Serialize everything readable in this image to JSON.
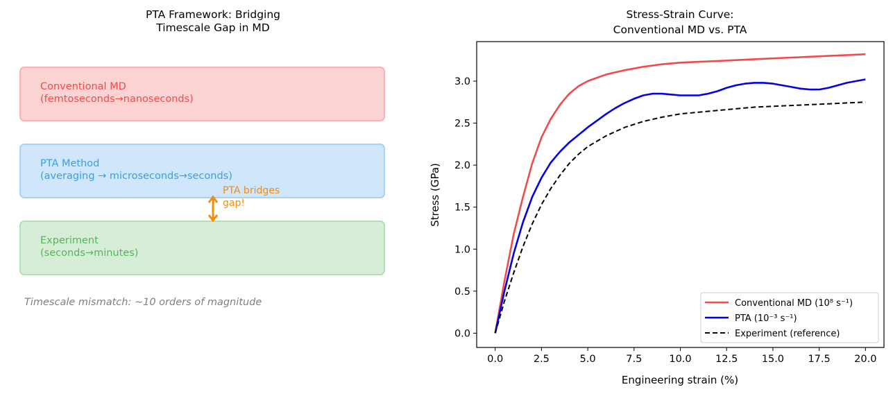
{
  "left": {
    "title": "PTA Framework: Bridging\nTimescale Gap in MD",
    "boxes": [
      {
        "line1": "Conventional MD",
        "line2": "(femtoseconds→nanoseconds)"
      },
      {
        "line1": "PTA Method",
        "line2": "(averaging → microseconds→seconds)"
      },
      {
        "line1": "Experiment",
        "line2": "(seconds→minutes)"
      }
    ],
    "bridge_label": "PTA bridges\ngap!",
    "note": "Timescale mismatch: ~10 orders of magnitude",
    "colors": {
      "red": "#ef4d4d",
      "blue": "#399fe7",
      "green": "#55b45a",
      "orange": "#f28d0a"
    }
  },
  "chart_data": {
    "type": "line",
    "title": "Stress-Strain Curve:\nConventional MD vs. PTA",
    "xlabel": "Engineering strain (%)",
    "ylabel": "Stress (GPa)",
    "xlim": [
      -1.0,
      21.0
    ],
    "ylim": [
      -0.17,
      3.47
    ],
    "xticks": [
      0.0,
      2.5,
      5.0,
      7.5,
      10.0,
      12.5,
      15.0,
      17.5,
      20.0
    ],
    "xtick_labels": [
      "0.0",
      "2.5",
      "5.0",
      "7.5",
      "10.0",
      "12.5",
      "15.0",
      "17.5",
      "20.0"
    ],
    "yticks": [
      0.0,
      0.5,
      1.0,
      1.5,
      2.0,
      2.5,
      3.0
    ],
    "ytick_labels": [
      "0.0",
      "0.5",
      "1.0",
      "1.5",
      "2.0",
      "2.5",
      "3.0"
    ],
    "legend_position": "lower-right",
    "series": [
      {
        "name": "Conventional MD (10⁸ s⁻¹)",
        "color": "#f24a4a",
        "dash": "solid",
        "x": [
          0,
          0.5,
          1,
          1.5,
          2,
          2.5,
          3,
          3.5,
          4,
          4.5,
          5,
          6,
          7,
          8,
          9,
          10,
          11,
          12,
          13,
          14,
          15,
          16,
          17,
          18,
          19,
          20
        ],
        "y": [
          0,
          0.62,
          1.18,
          1.62,
          2.02,
          2.33,
          2.55,
          2.72,
          2.85,
          2.94,
          3.0,
          3.08,
          3.13,
          3.17,
          3.2,
          3.22,
          3.23,
          3.24,
          3.25,
          3.26,
          3.27,
          3.28,
          3.29,
          3.3,
          3.31,
          3.32
        ]
      },
      {
        "name": "PTA (10⁻³ s⁻¹)",
        "color": "#0000ee",
        "dash": "solid",
        "x": [
          0,
          0.5,
          1,
          1.5,
          2,
          2.5,
          3,
          3.5,
          4,
          4.5,
          5,
          5.5,
          6,
          6.5,
          7,
          7.5,
          8,
          8.5,
          9,
          9.5,
          10,
          10.5,
          11,
          11.5,
          12,
          12.5,
          13,
          13.5,
          14,
          14.5,
          15,
          15.5,
          16,
          16.5,
          17,
          17.5,
          18,
          18.5,
          19,
          19.5,
          20
        ],
        "y": [
          0,
          0.5,
          0.95,
          1.32,
          1.62,
          1.85,
          2.03,
          2.16,
          2.27,
          2.36,
          2.45,
          2.53,
          2.61,
          2.68,
          2.74,
          2.79,
          2.83,
          2.85,
          2.85,
          2.84,
          2.83,
          2.83,
          2.83,
          2.85,
          2.88,
          2.92,
          2.95,
          2.97,
          2.98,
          2.98,
          2.97,
          2.95,
          2.93,
          2.91,
          2.9,
          2.9,
          2.92,
          2.95,
          2.98,
          3.0,
          3.02
        ]
      },
      {
        "name": "Experiment (reference)",
        "color": "#000000",
        "dash": "dashed",
        "x": [
          0,
          0.5,
          1,
          1.5,
          2,
          2.5,
          3,
          3.5,
          4,
          4.5,
          5,
          6,
          7,
          8,
          9,
          10,
          11,
          12,
          13,
          14,
          15,
          16,
          17,
          18,
          19,
          20
        ],
        "y": [
          0,
          0.38,
          0.72,
          1.03,
          1.3,
          1.53,
          1.72,
          1.88,
          2.02,
          2.13,
          2.22,
          2.35,
          2.45,
          2.52,
          2.57,
          2.61,
          2.63,
          2.65,
          2.67,
          2.69,
          2.7,
          2.71,
          2.72,
          2.73,
          2.74,
          2.75
        ]
      }
    ]
  }
}
